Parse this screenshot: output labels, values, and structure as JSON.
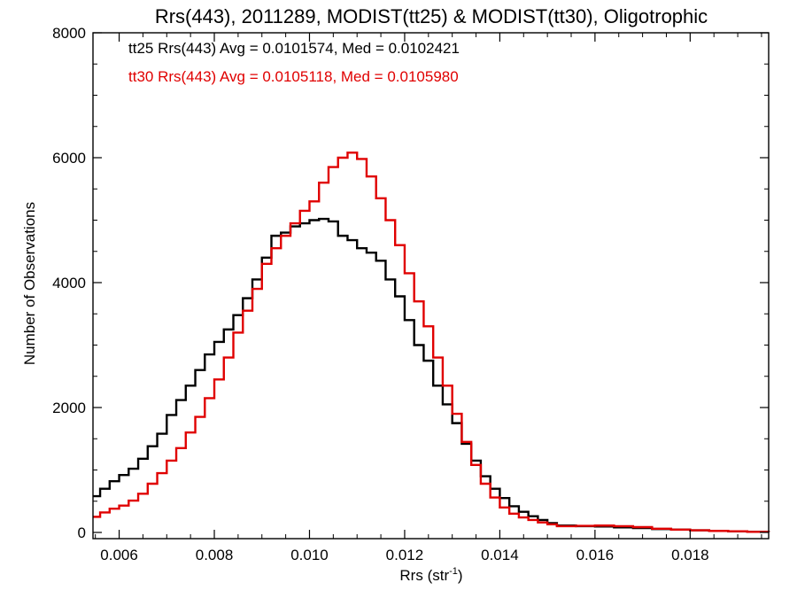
{
  "chart_data": {
    "type": "line",
    "title": "Rrs(443), 2011289, MODIST(tt25) & MODIST(tt30), Oligotrophic",
    "xlabel": "Rrs (str",
    "xlabel_sup": "-1",
    "xlabel_close": ")",
    "ylabel": "Number of Observations",
    "xlim": [
      0.00545,
      0.01965
    ],
    "ylim": [
      0,
      8000
    ],
    "x_ticks": [
      0.006,
      0.008,
      0.01,
      0.012,
      0.014,
      0.016,
      0.018
    ],
    "x_tick_labels": [
      "0.006",
      "0.008",
      "0.010",
      "0.012",
      "0.014",
      "0.016",
      "0.018"
    ],
    "y_ticks": [
      0,
      2000,
      4000,
      6000,
      8000
    ],
    "y_tick_labels": [
      "0",
      "2000",
      "4000",
      "6000",
      "8000"
    ],
    "grid": false,
    "step": true,
    "annotations": [
      {
        "text": "tt25 Rrs(443) Avg = 0.0101574, Med = 0.0102421",
        "color": "#000000"
      },
      {
        "text": "tt30 Rrs(443) Avg = 0.0105118, Med = 0.0105980",
        "color": "#e00000"
      }
    ],
    "series": [
      {
        "color": "#000000",
        "points": [
          [
            0.00545,
            580
          ],
          [
            0.0056,
            700
          ],
          [
            0.0058,
            820
          ],
          [
            0.006,
            920
          ],
          [
            0.0062,
            1020
          ],
          [
            0.0064,
            1180
          ],
          [
            0.0066,
            1380
          ],
          [
            0.0068,
            1580
          ],
          [
            0.007,
            1880
          ],
          [
            0.0072,
            2120
          ],
          [
            0.0074,
            2350
          ],
          [
            0.0076,
            2600
          ],
          [
            0.0078,
            2850
          ],
          [
            0.008,
            3050
          ],
          [
            0.0082,
            3250
          ],
          [
            0.0084,
            3480
          ],
          [
            0.0086,
            3750
          ],
          [
            0.0088,
            4050
          ],
          [
            0.009,
            4400
          ],
          [
            0.0092,
            4750
          ],
          [
            0.0094,
            4800
          ],
          [
            0.0096,
            4900
          ],
          [
            0.0098,
            4950
          ],
          [
            0.01,
            5000
          ],
          [
            0.0102,
            5020
          ],
          [
            0.0104,
            4980
          ],
          [
            0.0106,
            4750
          ],
          [
            0.0108,
            4680
          ],
          [
            0.011,
            4550
          ],
          [
            0.0112,
            4480
          ],
          [
            0.0114,
            4350
          ],
          [
            0.0116,
            4050
          ],
          [
            0.0118,
            3780
          ],
          [
            0.012,
            3400
          ],
          [
            0.0122,
            3000
          ],
          [
            0.0124,
            2750
          ],
          [
            0.0126,
            2350
          ],
          [
            0.0128,
            2050
          ],
          [
            0.013,
            1750
          ],
          [
            0.0132,
            1420
          ],
          [
            0.0134,
            1150
          ],
          [
            0.0136,
            900
          ],
          [
            0.0138,
            700
          ],
          [
            0.014,
            550
          ],
          [
            0.0142,
            420
          ],
          [
            0.0144,
            330
          ],
          [
            0.0146,
            260
          ],
          [
            0.0148,
            200
          ],
          [
            0.015,
            150
          ],
          [
            0.0152,
            110
          ],
          [
            0.0156,
            100
          ],
          [
            0.016,
            95
          ],
          [
            0.0164,
            80
          ],
          [
            0.0168,
            70
          ],
          [
            0.0172,
            55
          ],
          [
            0.0176,
            45
          ],
          [
            0.018,
            35
          ],
          [
            0.0184,
            25
          ],
          [
            0.0188,
            18
          ],
          [
            0.0192,
            10
          ],
          [
            0.01965,
            5
          ]
        ]
      },
      {
        "color": "#e00000",
        "points": [
          [
            0.00545,
            250
          ],
          [
            0.0056,
            320
          ],
          [
            0.0058,
            380
          ],
          [
            0.006,
            430
          ],
          [
            0.0062,
            510
          ],
          [
            0.0064,
            620
          ],
          [
            0.0066,
            780
          ],
          [
            0.0068,
            950
          ],
          [
            0.007,
            1150
          ],
          [
            0.0072,
            1350
          ],
          [
            0.0074,
            1600
          ],
          [
            0.0076,
            1850
          ],
          [
            0.0078,
            2150
          ],
          [
            0.008,
            2450
          ],
          [
            0.0082,
            2800
          ],
          [
            0.0084,
            3200
          ],
          [
            0.0086,
            3550
          ],
          [
            0.0088,
            3900
          ],
          [
            0.009,
            4300
          ],
          [
            0.0092,
            4550
          ],
          [
            0.0094,
            4750
          ],
          [
            0.0096,
            4950
          ],
          [
            0.0098,
            5150
          ],
          [
            0.01,
            5300
          ],
          [
            0.0102,
            5600
          ],
          [
            0.0104,
            5850
          ],
          [
            0.0106,
            6000
          ],
          [
            0.0108,
            6080
          ],
          [
            0.011,
            5980
          ],
          [
            0.0112,
            5700
          ],
          [
            0.0114,
            5350
          ],
          [
            0.0116,
            5000
          ],
          [
            0.0118,
            4600
          ],
          [
            0.012,
            4150
          ],
          [
            0.0122,
            3700
          ],
          [
            0.0124,
            3300
          ],
          [
            0.0126,
            2800
          ],
          [
            0.0128,
            2350
          ],
          [
            0.013,
            1900
          ],
          [
            0.0132,
            1450
          ],
          [
            0.0134,
            1080
          ],
          [
            0.0136,
            780
          ],
          [
            0.0138,
            560
          ],
          [
            0.014,
            400
          ],
          [
            0.0142,
            300
          ],
          [
            0.0144,
            240
          ],
          [
            0.0146,
            200
          ],
          [
            0.0148,
            160
          ],
          [
            0.015,
            130
          ],
          [
            0.0152,
            100
          ],
          [
            0.0156,
            105
          ],
          [
            0.016,
            110
          ],
          [
            0.0164,
            100
          ],
          [
            0.0168,
            85
          ],
          [
            0.0172,
            60
          ],
          [
            0.0176,
            45
          ],
          [
            0.018,
            35
          ],
          [
            0.0184,
            25
          ],
          [
            0.0188,
            18
          ],
          [
            0.0192,
            10
          ],
          [
            0.01965,
            5
          ]
        ]
      }
    ]
  }
}
